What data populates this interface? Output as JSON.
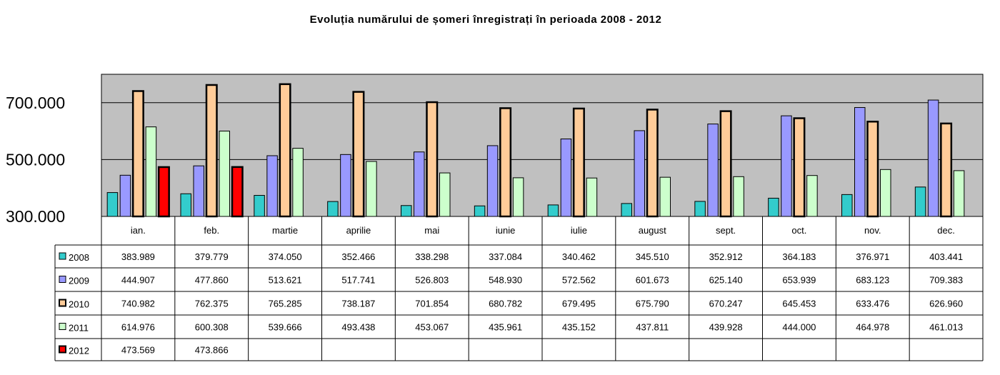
{
  "chart_data": {
    "type": "bar",
    "title": "Evoluția numărului de șomeri înregistrați în perioada 2008 - 2012",
    "categories": [
      "ian.",
      "feb.",
      "martie",
      "aprilie",
      "mai",
      "iunie",
      "iulie",
      "august",
      "sept.",
      "oct.",
      "nov.",
      "dec."
    ],
    "ylim": [
      300000,
      800000
    ],
    "yticks": [
      300000,
      500000,
      700000
    ],
    "ytick_labels": [
      "300.000",
      "500.000",
      "700.000"
    ],
    "grid": true,
    "legend": "data-table-left",
    "colors": {
      "plot_bg": "#c0c0c0",
      "2008": "#33cccc",
      "2009": "#9999ff",
      "2010": "#ffcc99",
      "2011": "#ccffcc",
      "2012": "#ff0000"
    },
    "series": [
      {
        "name": "2008",
        "values": [
          383989,
          379779,
          374050,
          352466,
          338298,
          337084,
          340462,
          345510,
          352912,
          364183,
          376971,
          403441
        ],
        "labels": [
          "383.989",
          "379.779",
          "374.050",
          "352.466",
          "338.298",
          "337.084",
          "340.462",
          "345.510",
          "352.912",
          "364.183",
          "376.971",
          "403.441"
        ]
      },
      {
        "name": "2009",
        "values": [
          444907,
          477860,
          513621,
          517741,
          526803,
          548930,
          572562,
          601673,
          625140,
          653939,
          683123,
          709383
        ],
        "labels": [
          "444.907",
          "477.860",
          "513.621",
          "517.741",
          "526.803",
          "548.930",
          "572.562",
          "601.673",
          "625.140",
          "653.939",
          "683.123",
          "709.383"
        ]
      },
      {
        "name": "2010",
        "values": [
          740982,
          762375,
          765285,
          738187,
          701854,
          680782,
          679495,
          675790,
          670247,
          645453,
          633476,
          626960
        ],
        "labels": [
          "740.982",
          "762.375",
          "765.285",
          "738.187",
          "701.854",
          "680.782",
          "679.495",
          "675.790",
          "670.247",
          "645.453",
          "633.476",
          "626.960"
        ]
      },
      {
        "name": "2011",
        "values": [
          614976,
          600308,
          539666,
          493438,
          453067,
          435961,
          435152,
          437811,
          439928,
          444000,
          464978,
          461013
        ],
        "labels": [
          "614.976",
          "600.308",
          "539.666",
          "493.438",
          "453.067",
          "435.961",
          "435.152",
          "437.811",
          "439.928",
          "444.000",
          "464.978",
          "461.013"
        ]
      },
      {
        "name": "2012",
        "values": [
          473569,
          473866,
          null,
          null,
          null,
          null,
          null,
          null,
          null,
          null,
          null,
          null
        ],
        "labels": [
          "473.569",
          "473.866",
          "",
          "",
          "",
          "",
          "",
          "",
          "",
          "",
          "",
          ""
        ]
      }
    ]
  }
}
